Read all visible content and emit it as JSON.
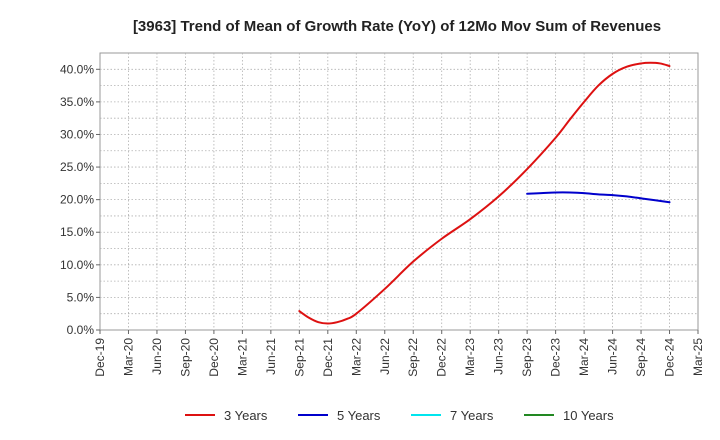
{
  "chart_data": {
    "type": "line",
    "title": "[3963]  Trend of Mean of Growth Rate (YoY) of 12Mo Mov Sum of Revenues",
    "xlabel": "",
    "ylabel": "",
    "ylim": [
      0,
      42.5
    ],
    "yticks": [
      0,
      5,
      10,
      15,
      20,
      25,
      30,
      35,
      40
    ],
    "ytick_labels": [
      "0.0%",
      "5.0%",
      "10.0%",
      "15.0%",
      "20.0%",
      "25.0%",
      "30.0%",
      "35.0%",
      "40.0%"
    ],
    "categories": [
      "Dec-19",
      "Mar-20",
      "Jun-20",
      "Sep-20",
      "Dec-20",
      "Mar-21",
      "Jun-21",
      "Sep-21",
      "Dec-21",
      "Mar-22",
      "Jun-22",
      "Sep-22",
      "Dec-22",
      "Mar-23",
      "Jun-23",
      "Sep-23",
      "Dec-23",
      "Mar-24",
      "Jun-24",
      "Sep-24",
      "Dec-24",
      "Mar-25"
    ],
    "grid": true,
    "legend_position": "bottom",
    "series": [
      {
        "name": "3 Years",
        "color": "#dd1111",
        "x": [
          7,
          7.33,
          7.67,
          8,
          8.33,
          8.67,
          9,
          10,
          11,
          12,
          13,
          14,
          15,
          16,
          16.5,
          17,
          17.5,
          18,
          18.5,
          19,
          19.33,
          19.67,
          20
        ],
        "y": [
          2.9,
          1.9,
          1.2,
          1.0,
          1.2,
          1.7,
          2.5,
          6.3,
          10.5,
          14.0,
          17.0,
          20.5,
          24.7,
          29.5,
          32.3,
          35.0,
          37.5,
          39.3,
          40.4,
          40.9,
          41.0,
          40.9,
          40.5
        ]
      },
      {
        "name": "5 Years",
        "color": "#0000cc",
        "x": [
          15,
          15.5,
          16,
          16.5,
          17,
          17.5,
          18,
          18.5,
          19,
          19.5,
          20
        ],
        "y": [
          20.9,
          21.0,
          21.1,
          21.1,
          21.0,
          20.8,
          20.7,
          20.5,
          20.2,
          19.9,
          19.6
        ]
      },
      {
        "name": "7 Years",
        "color": "#00e5ee",
        "x": [],
        "y": []
      },
      {
        "name": "10 Years",
        "color": "#228822",
        "x": [],
        "y": []
      }
    ]
  }
}
